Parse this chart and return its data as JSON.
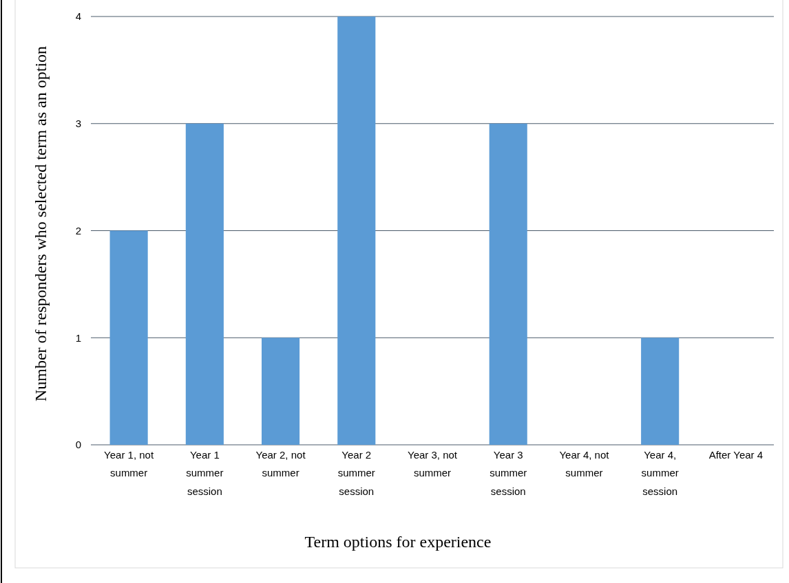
{
  "chart_data": {
    "type": "bar",
    "xlabel": "Term options for experience",
    "ylabel": "Number of responders who selected term as an option",
    "categories": [
      "Year 1, not summer",
      "Year 1 summer session",
      "Year 2, not summer",
      "Year 2 summer session",
      "Year 3, not summer",
      "Year 3 summer session",
      "Year 4, not summer",
      "Year 4, summer session",
      "After Year 4"
    ],
    "values": [
      2,
      3,
      1,
      4,
      0,
      3,
      0,
      1,
      0
    ],
    "color": "#5b9bd5",
    "ylim": [
      0,
      4
    ],
    "yticks": [
      0,
      1,
      2,
      3,
      4
    ],
    "grid": "y"
  }
}
